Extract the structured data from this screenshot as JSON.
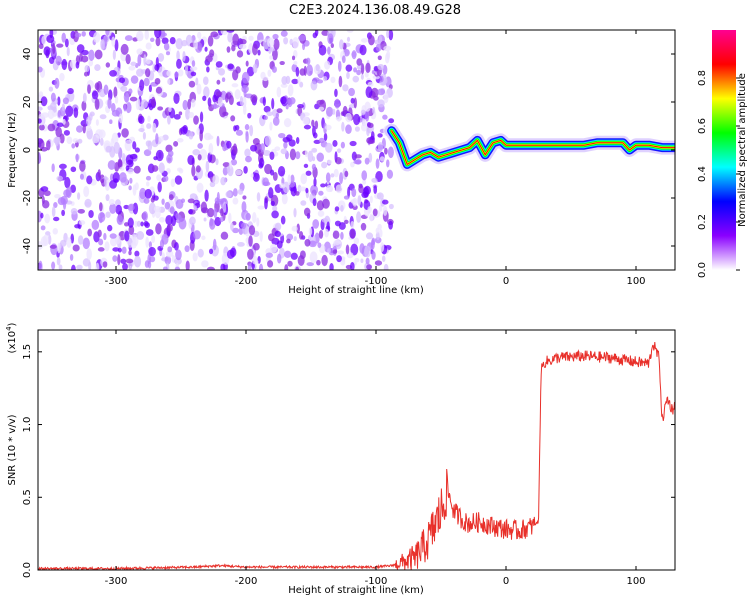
{
  "title": "C2E3.2024.136.08.49.G28",
  "chart_data": [
    {
      "type": "heatmap",
      "xlabel": "Height of straight line (km)",
      "ylabel": "Frequency (Hz)",
      "xlim": [
        -360,
        130
      ],
      "ylim": [
        -50,
        50
      ],
      "x_ticks": [
        -300,
        -200,
        -100,
        0,
        100
      ],
      "y_ticks": [
        -40,
        -20,
        0,
        20,
        40
      ],
      "colorbar": {
        "label": "Normalized spectral amplitude",
        "range": [
          0,
          1
        ],
        "ticks": [
          "0.0",
          "0.2",
          "0.4",
          "0.6",
          "0.8"
        ],
        "colors": [
          "#ffffff",
          "#8a00ff",
          "#0000ff",
          "#00ffff",
          "#00ff00",
          "#ffff00",
          "#ff0000",
          "#ff0090"
        ]
      },
      "regions": [
        {
          "name": "noise",
          "x_range": [
            -360,
            -88
          ],
          "freq_range": [
            -50,
            50
          ],
          "amplitude": 0.1
        },
        {
          "name": "signal",
          "x_range": [
            -88,
            130
          ],
          "freq_center": 2,
          "amplitude": 0.9
        }
      ],
      "signal_trace": {
        "x": [
          -88,
          -82,
          -76,
          -70,
          -64,
          -58,
          -52,
          -46,
          -40,
          -34,
          -28,
          -22,
          -16,
          -10,
          -4,
          0,
          20,
          40,
          60,
          70,
          80,
          90,
          95,
          100,
          110,
          120,
          130
        ],
        "freq": [
          8,
          3,
          -6,
          -4,
          -2,
          -1,
          -3,
          -2,
          -1,
          0,
          1,
          4,
          -2,
          3,
          4,
          2,
          2,
          2,
          2,
          3,
          3,
          3,
          0,
          2,
          2,
          1,
          1
        ]
      }
    },
    {
      "type": "line",
      "xlabel": "Height of straight line (km)",
      "ylabel": "SNR (10 * v/v)",
      "y_multiplier": "(x10",
      "y_multiplier_exp": "4",
      "xlim": [
        -360,
        130
      ],
      "ylim": [
        0,
        1.65
      ],
      "x_ticks": [
        -300,
        -200,
        -100,
        0,
        100
      ],
      "y_ticks": [
        "0.0",
        "0.5",
        "1.0",
        "1.5"
      ],
      "color": "#e8302a",
      "series": [
        {
          "x": [
            -360,
            -300,
            -240,
            -220,
            -200,
            -100,
            -88,
            -70,
            -60,
            -50,
            -45,
            -40,
            -30,
            -20,
            -10,
            0,
            10,
            20,
            25,
            27,
            30,
            40,
            60,
            80,
            100,
            110,
            113,
            118,
            120,
            124,
            128,
            130
          ],
          "y": [
            0.01,
            0.01,
            0.02,
            0.03,
            0.02,
            0.02,
            0.03,
            0.08,
            0.2,
            0.4,
            0.55,
            0.4,
            0.32,
            0.33,
            0.3,
            0.28,
            0.27,
            0.3,
            0.33,
            1.38,
            1.43,
            1.46,
            1.47,
            1.46,
            1.43,
            1.42,
            1.56,
            1.45,
            1.02,
            1.18,
            1.1,
            1.14
          ]
        }
      ]
    }
  ]
}
